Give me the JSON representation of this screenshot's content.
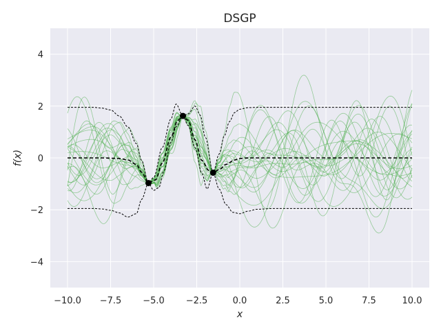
{
  "chart_data": {
    "type": "line",
    "title": "DSGP",
    "xlabel": "x",
    "ylabel": "f(x)",
    "xlim": [
      -11,
      11
    ],
    "ylim": [
      -5,
      5
    ],
    "xticks": [
      -10,
      -7.5,
      -5,
      -2.5,
      0,
      2.5,
      5,
      7.5,
      10
    ],
    "xtick_labels": [
      "−10.0",
      "−7.5",
      "−5.0",
      "−2.5",
      "0.0",
      "2.5",
      "5.0",
      "7.5",
      "10.0"
    ],
    "yticks": [
      -4,
      -2,
      0,
      2,
      4
    ],
    "ytick_labels": [
      "−4",
      "−2",
      "0",
      "2",
      "4"
    ],
    "grid": true,
    "observations": [
      {
        "x": -5.3,
        "y": -0.97
      },
      {
        "x": -3.3,
        "y": 1.62
      },
      {
        "x": -1.55,
        "y": -0.57
      }
    ],
    "posterior_mean": {
      "x": [
        -10,
        -8,
        -7,
        -6.5,
        -6,
        -5.7,
        -5.3,
        -4.9,
        -4.5,
        -4,
        -3.6,
        -3.3,
        -3,
        -2.6,
        -2.2,
        -1.8,
        -1.55,
        -1.2,
        -0.8,
        -0.3,
        0,
        0.5,
        1,
        2,
        5,
        10
      ],
      "y": [
        0,
        0,
        -0.02,
        -0.08,
        -0.25,
        -0.55,
        -0.97,
        -0.85,
        -0.2,
        0.8,
        1.45,
        1.62,
        1.45,
        0.7,
        -0.1,
        -0.48,
        -0.57,
        -0.45,
        -0.25,
        -0.08,
        -0.02,
        0,
        0,
        0,
        0,
        0
      ]
    },
    "upper_band": {
      "x": [
        -10,
        -8.5,
        -8,
        -7.5,
        -7,
        -6.5,
        -6,
        -5.7,
        -5.3,
        -5,
        -4.5,
        -4,
        -3.7,
        -3.3,
        -3,
        -2.6,
        -2.3,
        -2,
        -1.55,
        -1.2,
        -0.9,
        -0.6,
        -0.3,
        0,
        0.5,
        1,
        2,
        5,
        10
      ],
      "y": [
        1.95,
        1.95,
        1.92,
        1.85,
        1.62,
        1.2,
        0.55,
        -0.1,
        -0.97,
        -0.75,
        0.4,
        1.5,
        2.08,
        1.62,
        1.7,
        2.0,
        1.65,
        0.8,
        -0.57,
        0.15,
        0.85,
        1.4,
        1.75,
        1.88,
        1.94,
        1.95,
        1.95,
        1.95,
        1.95
      ]
    },
    "lower_band": {
      "x": [
        -10,
        -8.5,
        -8,
        -7.5,
        -7,
        -6.5,
        -6,
        -5.7,
        -5.3,
        -5,
        -4.7,
        -4.4,
        -4,
        -3.7,
        -3.3,
        -3,
        -2.6,
        -2.2,
        -1.9,
        -1.55,
        -1.2,
        -0.8,
        -0.4,
        0,
        0.5,
        1,
        2,
        5,
        10
      ],
      "y": [
        -1.95,
        -1.95,
        -1.97,
        -2.02,
        -2.12,
        -2.28,
        -2.15,
        -1.6,
        -0.97,
        -1.25,
        -1.15,
        -0.5,
        0.6,
        1.2,
        1.62,
        1.25,
        0.4,
        -0.6,
        -1.2,
        -0.57,
        -1.2,
        -1.8,
        -2.1,
        -2.15,
        -2.05,
        -1.98,
        -1.95,
        -1.95,
        -1.95
      ]
    },
    "num_samples": 24,
    "colors": {
      "background": "#eaeaf2",
      "grid": "#ffffff",
      "samples": "#4cae4c",
      "mean": "#000000",
      "band": "#000000",
      "points": "#000000"
    }
  }
}
